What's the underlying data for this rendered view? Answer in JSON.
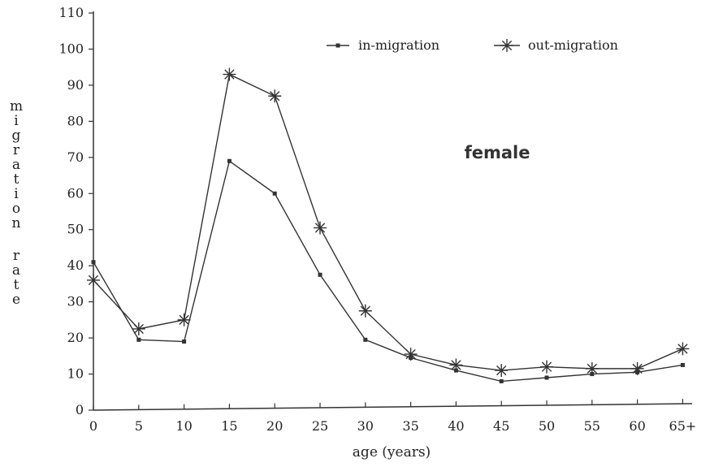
{
  "chart_data": {
    "type": "line",
    "categories": [
      "0",
      "5",
      "10",
      "15",
      "20",
      "25",
      "30",
      "35",
      "40",
      "45",
      "50",
      "55",
      "60",
      "65+"
    ],
    "series": [
      {
        "name": "in-migration",
        "marker": "square",
        "values": [
          41,
          19.5,
          19,
          69,
          60,
          37.5,
          19.5,
          14.5,
          11,
          8,
          9,
          10,
          10.5,
          12.5
        ]
      },
      {
        "name": "out-migration",
        "marker": "asterisk",
        "values": [
          36,
          22.5,
          25,
          93,
          87,
          50.5,
          27.5,
          15.5,
          12.5,
          11,
          12,
          11.5,
          11.5,
          17
        ]
      }
    ],
    "xlabel": "age (years)",
    "ylabel": "migration rate",
    "ylim": [
      0,
      110
    ],
    "yticks": [
      "0",
      "10",
      "20",
      "30",
      "40",
      "50",
      "60",
      "70",
      "80",
      "90",
      "100",
      "110"
    ],
    "annotation": "female",
    "legend_position": "top-right",
    "grid": false,
    "line_color": "#333333"
  }
}
